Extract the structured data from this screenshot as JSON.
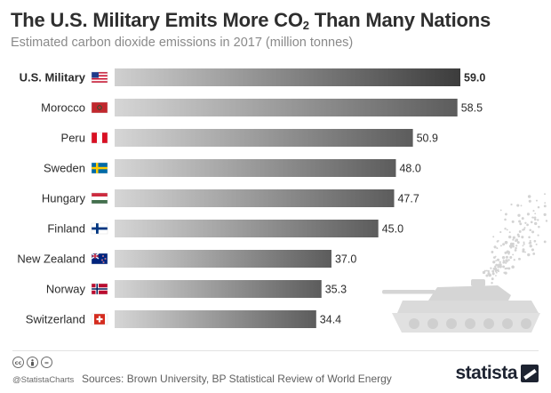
{
  "header": {
    "title_main": "The U.S. Military Emits More CO",
    "title_sub": "2",
    "title_end": " Than Many Nations",
    "subtitle": "Estimated carbon dioxide emissions in 2017 (million tonnes)"
  },
  "chart_data": {
    "type": "bar",
    "orientation": "horizontal",
    "title": "The U.S. Military Emits More CO2 Than Many Nations",
    "subtitle": "Estimated carbon dioxide emissions in 2017 (million tonnes)",
    "categories": [
      "U.S. Military",
      "Morocco",
      "Peru",
      "Sweden",
      "Hungary",
      "Finland",
      "New Zealand",
      "Norway",
      "Switzerland"
    ],
    "values": [
      59.0,
      58.5,
      50.9,
      48.0,
      47.7,
      45.0,
      37.0,
      35.3,
      34.4
    ],
    "value_labels": [
      "59.0",
      "58.5",
      "50.9",
      "48.0",
      "47.7",
      "45.0",
      "37.0",
      "35.3",
      "34.4"
    ],
    "flags": [
      "us-flag-icon",
      "morocco-flag-icon",
      "peru-flag-icon",
      "sweden-flag-icon",
      "hungary-flag-icon",
      "finland-flag-icon",
      "new-zealand-flag-icon",
      "norway-flag-icon",
      "switzerland-flag-icon"
    ],
    "highlight_category": "U.S. Military",
    "xlim": [
      0,
      59.0
    ],
    "grid": false,
    "bar_gradient": [
      "#d6d6d6",
      "#5c5c5c"
    ],
    "highlight_gradient": [
      "#d0d0d0",
      "#3c3c3c"
    ],
    "decoration": "tank-silhouette-icon"
  },
  "footer": {
    "cc_icons": [
      "cc",
      "by",
      "="
    ],
    "handle": "@StatistaCharts",
    "sources": "Sources: Brown University, BP Statistical Review of World Energy",
    "logo": "statista"
  }
}
